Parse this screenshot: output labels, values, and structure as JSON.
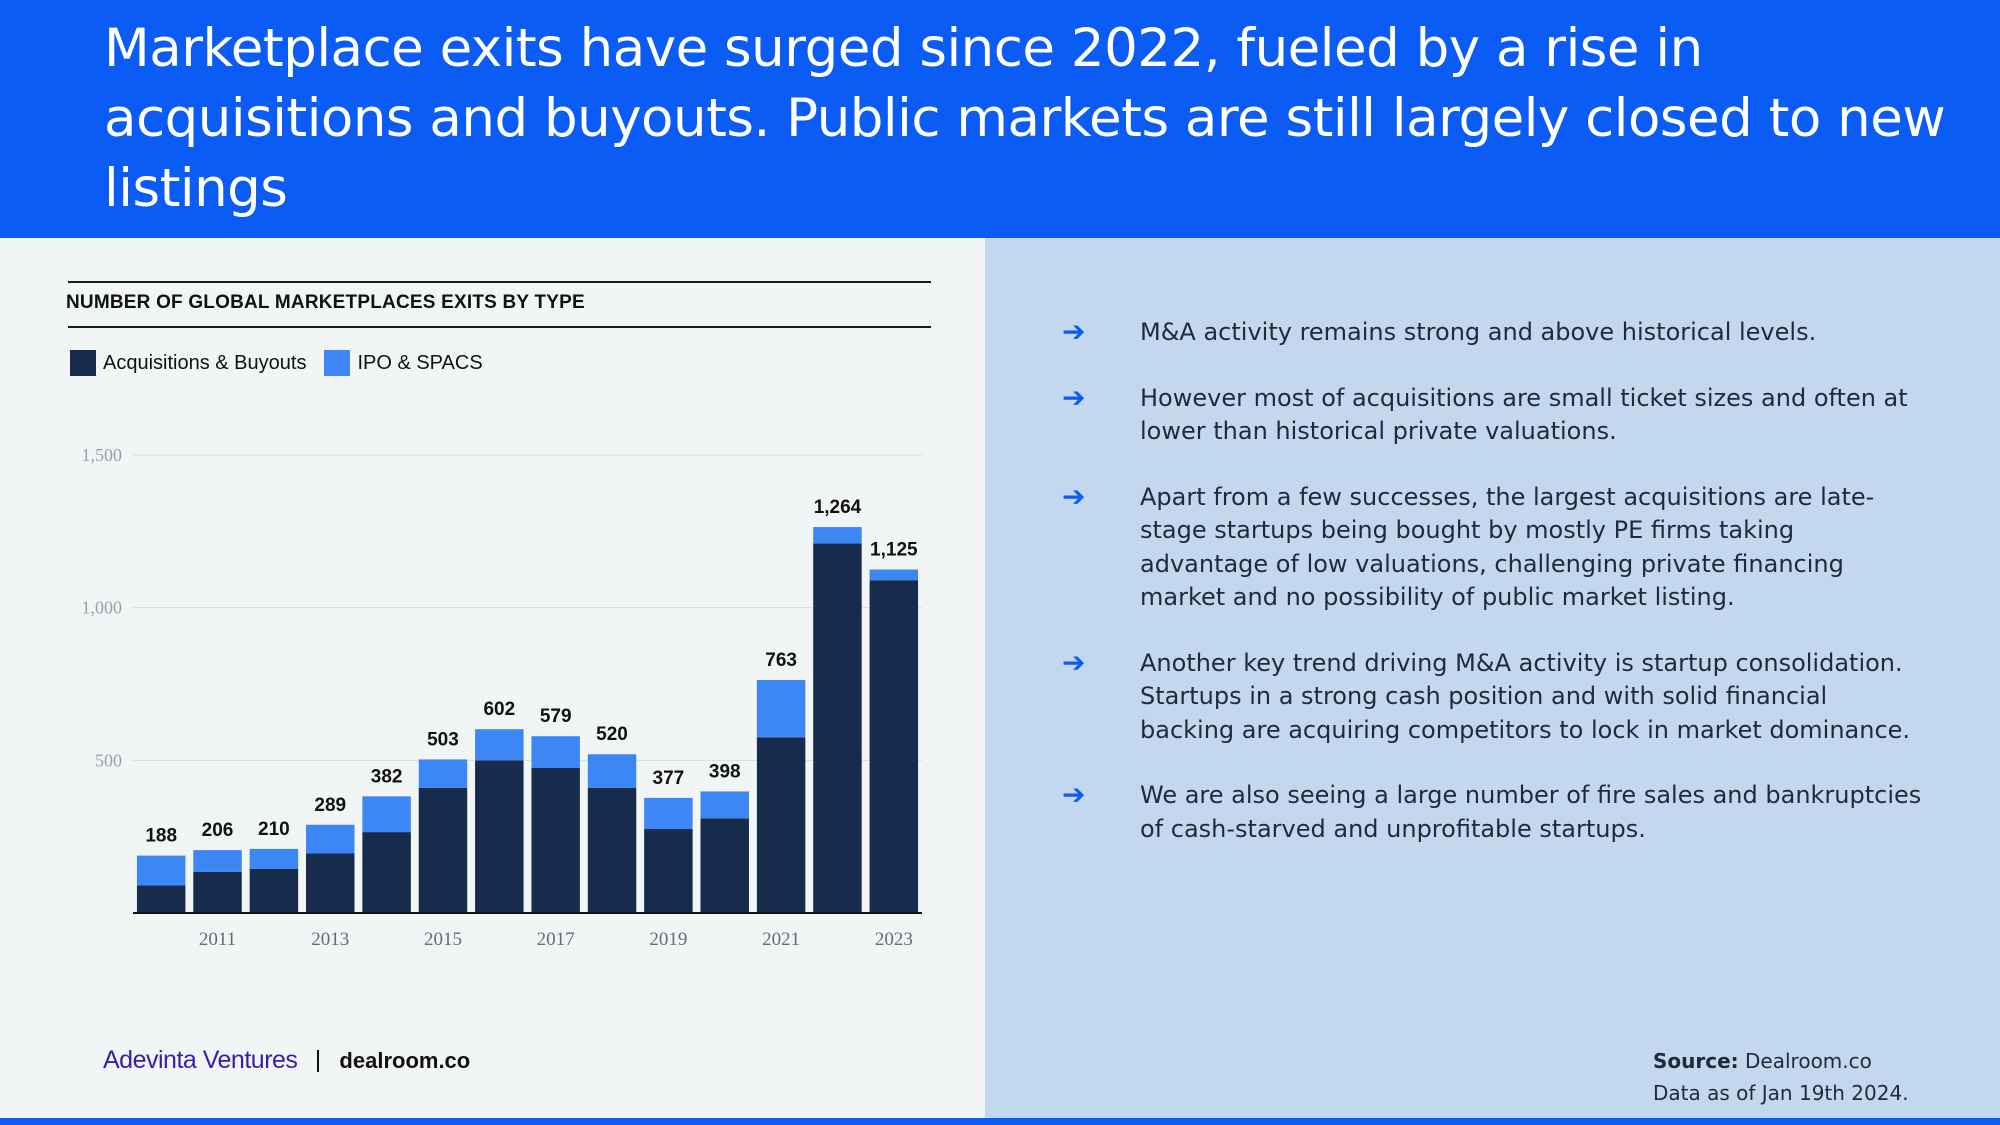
{
  "header": {
    "title": "Marketplace exits have surged since 2022, fueled by a rise in acquisitions and buyouts. Public markets are still largely closed to new listings"
  },
  "chart_title": "NUMBER OF GLOBAL MARKETPLACES EXITS BY TYPE",
  "colors": {
    "header_bg": "#0a5cf5",
    "acquisitions": "#172b4d",
    "ipo": "#3d86f5",
    "right_panel": "#c3d8ef",
    "left_panel": "#f2f5f6"
  },
  "chart_data": {
    "type": "bar",
    "stacked": true,
    "title": "NUMBER OF GLOBAL MARKETPLACES EXITS BY TYPE",
    "categories": [
      "2010",
      "2011",
      "2012",
      "2013",
      "2014",
      "2015",
      "2016",
      "2017",
      "2018",
      "2019",
      "2020",
      "2021",
      "2022",
      "2023"
    ],
    "x_tick_labels": [
      "",
      "2011",
      "",
      "2013",
      "",
      "2015",
      "",
      "2017",
      "",
      "2019",
      "",
      "2021",
      "",
      "2023"
    ],
    "series": [
      {
        "name": "Acquisitions & Buyouts",
        "color": "#172b4d",
        "values": [
          90,
          135,
          145,
          195,
          265,
          410,
          500,
          475,
          410,
          275,
          310,
          575,
          1210,
          1090
        ]
      },
      {
        "name": "IPO & SPACS",
        "color": "#3d86f5",
        "values": [
          98,
          71,
          65,
          94,
          117,
          93,
          102,
          104,
          110,
          102,
          88,
          188,
          54,
          35
        ]
      }
    ],
    "totals": [
      188,
      206,
      210,
      289,
      382,
      503,
      602,
      579,
      520,
      377,
      398,
      763,
      1264,
      1125
    ],
    "total_labels": [
      "188",
      "206",
      "210",
      "289",
      "382",
      "503",
      "602",
      "579",
      "520",
      "377",
      "398",
      "763",
      "1,264",
      "1,125"
    ],
    "yticks": [
      500,
      1000,
      1500
    ],
    "ytick_labels": [
      "500",
      "1,000",
      "1,500"
    ],
    "ylim": [
      0,
      1500
    ],
    "xlabel": "",
    "ylabel": "",
    "grid": true,
    "legend": "top-left"
  },
  "bullets": [
    "M&A activity remains strong and above historical levels.",
    "However most of acquisitions are small ticket sizes and often at lower than historical private valuations.",
    "Apart from a few successes, the largest acquisitions are late-stage startups being bought by mostly PE firms taking advantage of low valuations, challenging private financing market and no possibility of public market listing.",
    "Another key trend driving M&A activity is startup consolidation. Startups in a strong cash position and with solid financial backing are acquiring competitors to lock in market dominance.",
    "We are also seeing a large number of  fire sales and bankruptcies of cash-starved and unprofitable startups."
  ],
  "bullet_icon": "arrow-right-icon",
  "bullet_glyph": "➔",
  "footer": {
    "logo_adevinta": "Adevinta Ventures",
    "logo_dealroom": "dealroom.co",
    "source_label": "Source:",
    "source_value": "Dealroom.co",
    "data_date": "Data as of Jan 19th 2024."
  }
}
